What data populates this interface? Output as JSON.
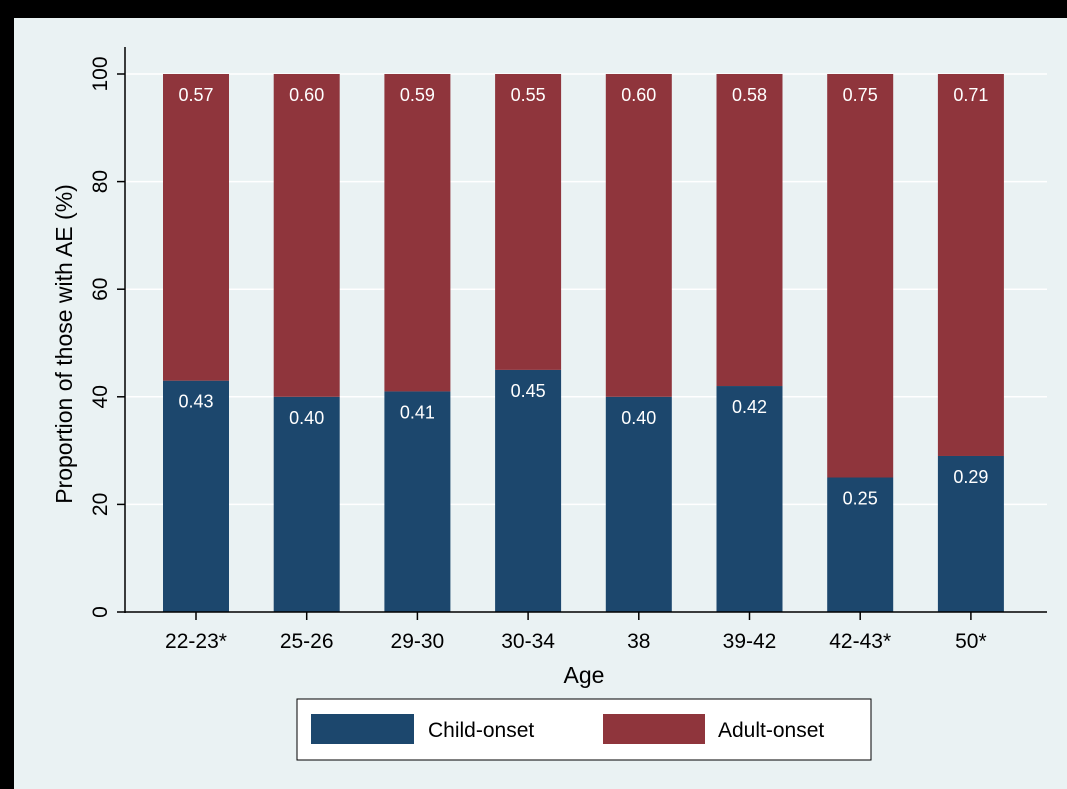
{
  "chart_data": {
    "type": "bar",
    "stacked": true,
    "categories": [
      "22-23*",
      "25-26",
      "29-30",
      "30-34",
      "38",
      "39-42",
      "42-43*",
      "50*"
    ],
    "series": [
      {
        "name": "Child-onset",
        "color": "#1c476d",
        "values": [
          43,
          40,
          41,
          45,
          40,
          42,
          25,
          29
        ],
        "labels": [
          "0.43",
          "0.40",
          "0.41",
          "0.45",
          "0.40",
          "0.42",
          "0.25",
          "0.29"
        ]
      },
      {
        "name": "Adult-onset",
        "color": "#8f353c",
        "values": [
          57,
          60,
          59,
          55,
          60,
          58,
          75,
          71
        ],
        "labels": [
          "0.57",
          "0.60",
          "0.59",
          "0.55",
          "0.60",
          "0.58",
          "0.75",
          "0.71"
        ]
      }
    ],
    "title": "",
    "xlabel": "Age",
    "ylabel": "Proportion of those with AE (%)",
    "ylim": [
      0,
      100
    ],
    "yticks": [
      0,
      20,
      40,
      60,
      80,
      100
    ],
    "grid": true,
    "legend_position": "bottom"
  },
  "colors": {
    "plot_background": "#eaf2f3",
    "outer_background": "#eaf2f3",
    "frame": "#000000",
    "gridline": "#ffffff"
  }
}
